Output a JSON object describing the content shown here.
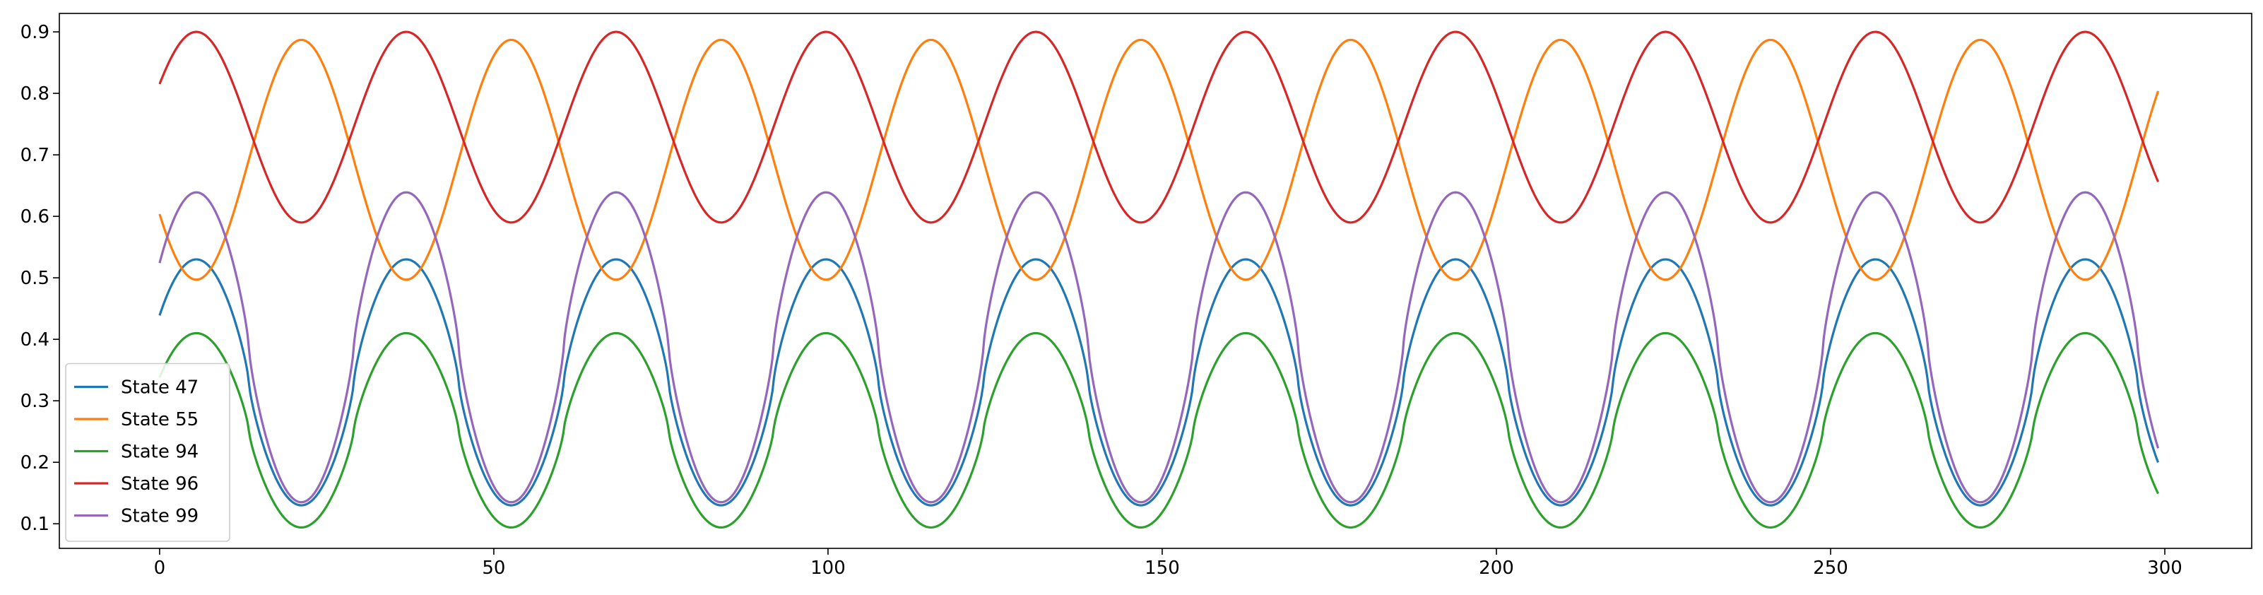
{
  "chart_data": {
    "type": "line",
    "title": "",
    "xlabel": "",
    "ylabel": "",
    "xlim": [
      -15,
      313
    ],
    "ylim": [
      0.06,
      0.93
    ],
    "x_ticks": [
      0,
      50,
      100,
      150,
      200,
      250,
      300
    ],
    "x_tick_labels": [
      "0",
      "50",
      "100",
      "150",
      "200",
      "250",
      "300"
    ],
    "y_ticks": [
      0.1,
      0.2,
      0.3,
      0.4,
      0.5,
      0.6,
      0.7,
      0.8,
      0.9
    ],
    "y_tick_labels": [
      "0.1",
      "0.2",
      "0.3",
      "0.4",
      "0.5",
      "0.6",
      "0.7",
      "0.8",
      "0.9"
    ],
    "grid": false,
    "legend_position": "lower-left",
    "x_range": [
      0,
      299
    ],
    "period": 31.4,
    "series": [
      {
        "name": "State 47",
        "color": "#1f77b4",
        "mean": 0.33,
        "amplitude": 0.2,
        "peak_x": 5.5,
        "sharpness": 1.3,
        "start_value": 0.395,
        "end_value": 0.178
      },
      {
        "name": "State 55",
        "color": "#ff7f0e",
        "mean": 0.692,
        "amplitude": 0.195,
        "peak_x": 21.2,
        "sharpness": 1.0,
        "start_value": 0.618,
        "end_value": 0.832
      },
      {
        "name": "State 94",
        "color": "#2ca02c",
        "mean": 0.252,
        "amplitude": 0.158,
        "peak_x": 5.5,
        "sharpness": 1.3,
        "start_value": 0.305,
        "end_value": 0.126
      },
      {
        "name": "State 96",
        "color": "#d62728",
        "mean": 0.745,
        "amplitude": 0.155,
        "peak_x": 5.5,
        "sharpness": 1.0,
        "start_value": 0.855,
        "end_value": 0.678
      },
      {
        "name": "State 99",
        "color": "#9467bd",
        "mean": 0.387,
        "amplitude": 0.252,
        "peak_x": 5.5,
        "sharpness": 1.3,
        "start_value": 0.488,
        "end_value": 0.211
      }
    ]
  }
}
